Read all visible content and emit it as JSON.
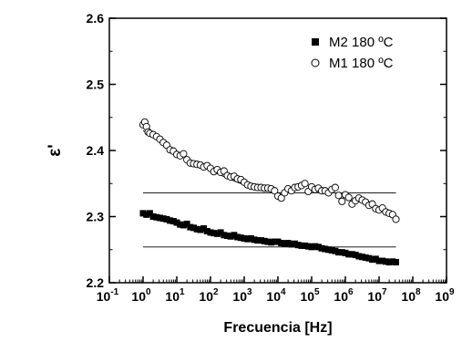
{
  "chart_data": {
    "type": "scatter",
    "title": "",
    "xlabel": "Frecuencia [Hz]",
    "ylabel": "ε'",
    "xscale": "log",
    "xlim_exp": [
      -1,
      9
    ],
    "ylim": [
      2.2,
      2.6
    ],
    "x_tick_labels": [
      {
        "base": "10",
        "exp": "-1"
      },
      {
        "base": "10",
        "exp": "0"
      },
      {
        "base": "10",
        "exp": "1"
      },
      {
        "base": "10",
        "exp": "2"
      },
      {
        "base": "10",
        "exp": "3"
      },
      {
        "base": "10",
        "exp": "4"
      },
      {
        "base": "10",
        "exp": "5"
      },
      {
        "base": "10",
        "exp": "6"
      },
      {
        "base": "10",
        "exp": "7"
      },
      {
        "base": "10",
        "exp": "8"
      },
      {
        "base": "10",
        "exp": "9"
      }
    ],
    "y_tick_labels": [
      "2.2",
      "2.3",
      "2.4",
      "2.5",
      "2.6"
    ],
    "legend_position": "top-right",
    "series": [
      {
        "name": "M2 180 ºC",
        "marker": "filled-square",
        "color": "#000000",
        "log10_x": [
          0.0,
          0.1,
          0.2,
          0.3,
          0.4,
          0.5,
          0.6,
          0.7,
          0.8,
          0.9,
          1.0,
          1.1,
          1.2,
          1.3,
          1.4,
          1.5,
          1.6,
          1.7,
          1.8,
          1.9,
          2.0,
          2.1,
          2.2,
          2.3,
          2.4,
          2.5,
          2.6,
          2.7,
          2.8,
          2.9,
          3.0,
          3.1,
          3.2,
          3.3,
          3.4,
          3.5,
          3.6,
          3.7,
          3.8,
          3.9,
          4.0,
          4.1,
          4.2,
          4.3,
          4.4,
          4.5,
          4.6,
          4.7,
          4.8,
          4.9,
          5.0,
          5.1,
          5.2,
          5.3,
          5.4,
          5.5,
          5.6,
          5.7,
          5.8,
          5.9,
          6.0,
          6.1,
          6.2,
          6.3,
          6.4,
          6.5,
          6.6,
          6.7,
          6.8,
          6.9,
          7.0,
          7.1,
          7.2,
          7.3,
          7.4,
          7.5
        ],
        "values": [
          2.305,
          2.303,
          2.305,
          2.3,
          2.299,
          2.298,
          2.297,
          2.296,
          2.294,
          2.293,
          2.291,
          2.288,
          2.287,
          2.289,
          2.284,
          2.283,
          2.281,
          2.28,
          2.282,
          2.278,
          2.276,
          2.275,
          2.274,
          2.276,
          2.272,
          2.271,
          2.27,
          2.272,
          2.269,
          2.268,
          2.267,
          2.266,
          2.267,
          2.265,
          2.264,
          2.264,
          2.263,
          2.262,
          2.261,
          2.262,
          2.262,
          2.26,
          2.259,
          2.26,
          2.258,
          2.259,
          2.257,
          2.256,
          2.256,
          2.255,
          2.254,
          2.255,
          2.254,
          2.252,
          2.251,
          2.25,
          2.249,
          2.248,
          2.246,
          2.246,
          2.245,
          2.243,
          2.243,
          2.242,
          2.24,
          2.239,
          2.238,
          2.237,
          2.235,
          2.236,
          2.233,
          2.233,
          2.232,
          2.231,
          2.232,
          2.231
        ]
      },
      {
        "name": "M1 180 ºC",
        "marker": "open-circle",
        "color": "#000000",
        "log10_x": [
          0.0,
          0.05,
          0.1,
          0.15,
          0.2,
          0.3,
          0.4,
          0.5,
          0.6,
          0.7,
          0.8,
          0.9,
          1.0,
          1.1,
          1.2,
          1.3,
          1.4,
          1.5,
          1.6,
          1.7,
          1.8,
          1.9,
          2.0,
          2.1,
          2.2,
          2.3,
          2.4,
          2.5,
          2.6,
          2.7,
          2.8,
          2.9,
          3.0,
          3.1,
          3.2,
          3.3,
          3.4,
          3.5,
          3.6,
          3.7,
          3.8,
          3.9,
          4.0,
          4.1,
          4.2,
          4.3,
          4.4,
          4.5,
          4.6,
          4.7,
          4.8,
          4.9,
          5.0,
          5.1,
          5.2,
          5.3,
          5.4,
          5.5,
          5.6,
          5.7,
          5.8,
          5.9,
          6.0,
          6.1,
          6.2,
          6.3,
          6.4,
          6.5,
          6.6,
          6.7,
          6.8,
          6.9,
          7.0,
          7.1,
          7.2,
          7.3,
          7.4,
          7.5
        ],
        "values": [
          2.439,
          2.443,
          2.436,
          2.428,
          2.426,
          2.424,
          2.421,
          2.417,
          2.412,
          2.408,
          2.401,
          2.399,
          2.394,
          2.392,
          2.395,
          2.386,
          2.381,
          2.38,
          2.379,
          2.378,
          2.375,
          2.377,
          2.373,
          2.368,
          2.371,
          2.367,
          2.369,
          2.362,
          2.36,
          2.361,
          2.357,
          2.356,
          2.352,
          2.348,
          2.346,
          2.345,
          2.344,
          2.344,
          2.343,
          2.343,
          2.342,
          2.339,
          2.331,
          2.328,
          2.336,
          2.342,
          2.339,
          2.344,
          2.345,
          2.347,
          2.35,
          2.338,
          2.345,
          2.341,
          2.343,
          2.339,
          2.339,
          2.336,
          2.341,
          2.344,
          2.332,
          2.323,
          2.333,
          2.329,
          2.319,
          2.324,
          2.328,
          2.325,
          2.322,
          2.317,
          2.319,
          2.312,
          2.31,
          2.313,
          2.307,
          2.305,
          2.303,
          2.296
        ]
      }
    ],
    "reference_lines": [
      {
        "log10_x": [
          0.0,
          7.5
        ],
        "values": [
          2.254,
          2.254
        ]
      },
      {
        "log10_x": [
          0.0,
          7.5
        ],
        "values": [
          2.336,
          2.336
        ]
      }
    ],
    "fit_curve": {
      "log10_x": [
        0.0,
        0.5,
        1.0,
        1.5,
        2.0,
        2.5,
        3.0,
        3.5,
        4.0
      ],
      "values": [
        2.43,
        2.414,
        2.398,
        2.383,
        2.37,
        2.358,
        2.348,
        2.341,
        2.337
      ]
    }
  }
}
